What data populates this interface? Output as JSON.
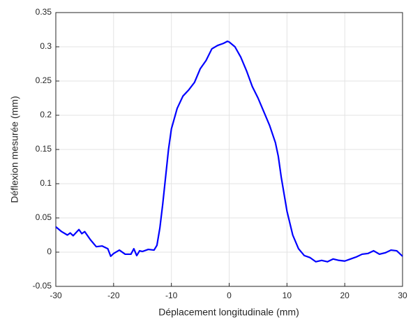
{
  "chart_data": {
    "type": "line",
    "xlabel": "Déplacement longitudinale (mm)",
    "ylabel": "Déflexion mesurée (mm)",
    "x": [
      -30,
      -29,
      -28,
      -27.5,
      -27,
      -26,
      -25.5,
      -25,
      -24,
      -23,
      -22,
      -21,
      -20.5,
      -20,
      -19,
      -18,
      -17,
      -16.5,
      -16,
      -15.5,
      -15,
      -14,
      -13,
      -12.5,
      -12,
      -11.5,
      -11,
      -10.5,
      -10,
      -9,
      -8,
      -7,
      -6,
      -5,
      -4,
      -3,
      -2,
      -1,
      -0.3,
      0,
      1,
      2,
      3,
      4,
      5,
      6,
      7,
      8,
      8.5,
      9,
      10,
      11,
      12,
      13,
      14,
      15,
      16,
      17,
      18,
      19,
      20,
      21,
      22,
      23,
      24,
      25,
      26,
      27,
      28,
      29,
      30
    ],
    "values": [
      0.037,
      0.03,
      0.025,
      0.028,
      0.024,
      0.033,
      0.027,
      0.03,
      0.018,
      0.008,
      0.009,
      0.005,
      -0.006,
      -0.002,
      0.003,
      -0.003,
      -0.003,
      0.005,
      -0.005,
      0.002,
      0.001,
      0.004,
      0.003,
      0.01,
      0.035,
      0.07,
      0.11,
      0.15,
      0.18,
      0.21,
      0.228,
      0.237,
      0.248,
      0.268,
      0.28,
      0.297,
      0.302,
      0.305,
      0.308,
      0.307,
      0.3,
      0.285,
      0.265,
      0.242,
      0.225,
      0.205,
      0.185,
      0.16,
      0.14,
      0.11,
      0.06,
      0.025,
      0.005,
      -0.005,
      -0.008,
      -0.014,
      -0.012,
      -0.014,
      -0.01,
      -0.012,
      -0.013,
      -0.01,
      -0.007,
      -0.003,
      -0.002,
      0.002,
      -0.003,
      -0.001,
      0.003,
      0.002,
      -0.006
    ],
    "color": "#0000ff",
    "xlim": [
      -30,
      30
    ],
    "xticks": [
      -30,
      -20,
      -10,
      0,
      10,
      20,
      30
    ],
    "ylim": [
      -0.05,
      0.35
    ],
    "yticks": [
      -0.05,
      0,
      0.05,
      0.1,
      0.15,
      0.2,
      0.25,
      0.3,
      0.35
    ],
    "grid": true
  }
}
